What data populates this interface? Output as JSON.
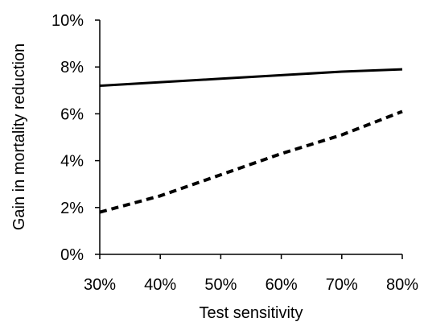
{
  "chart_data": {
    "type": "line",
    "title": "",
    "xlabel": "Test sensitivity",
    "ylabel": "Gain in mortality reduction",
    "x": [
      0.3,
      0.4,
      0.5,
      0.6,
      0.7,
      0.8
    ],
    "xticks": [
      0.3,
      0.4,
      0.5,
      0.6,
      0.7,
      0.8
    ],
    "xtick_labels": [
      "30%",
      "40%",
      "50%",
      "60%",
      "70%",
      "80%"
    ],
    "yticks": [
      0,
      0.02,
      0.04,
      0.06,
      0.08,
      0.1
    ],
    "ytick_labels": [
      "0%",
      "2%",
      "4%",
      "6%",
      "8%",
      "10%"
    ],
    "xlim": [
      0.3,
      0.8
    ],
    "ylim": [
      0,
      0.1
    ],
    "grid": false,
    "legend": "none",
    "series": [
      {
        "style": "solid",
        "color": "#000000",
        "values": [
          0.072,
          0.0735,
          0.075,
          0.0765,
          0.078,
          0.079
        ]
      },
      {
        "style": "dashed",
        "color": "#000000",
        "values": [
          0.018,
          0.025,
          0.034,
          0.043,
          0.051,
          0.061
        ]
      }
    ]
  }
}
